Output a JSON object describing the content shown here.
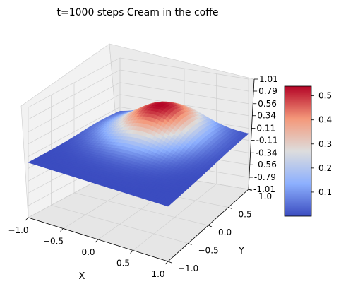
{
  "chart_data": {
    "type": "surface",
    "title": "t=1000 steps Cream in the coffe",
    "xlabel": "X",
    "ylabel": "Y",
    "zlabel": "",
    "xlim": [
      -1.0,
      1.0
    ],
    "ylim": [
      -1.0,
      1.0
    ],
    "zlim": [
      -1.01,
      1.01
    ],
    "x_ticks": [
      "−1.0",
      "−0.5",
      "0.0",
      "0.5",
      "1.0"
    ],
    "y_ticks": [
      "−1.0",
      "−0.5",
      "0.0",
      "0.5",
      "1.0"
    ],
    "z_ticks": [
      "1.01",
      "0.79",
      "0.56",
      "0.34",
      "0.11",
      "-0.11",
      "-0.34",
      "-0.56",
      "-0.79",
      "-1.01"
    ],
    "z_tick_values": [
      1.01,
      0.79,
      0.56,
      0.34,
      0.11,
      -0.11,
      -0.34,
      -0.56,
      -0.79,
      -1.01
    ],
    "surface": {
      "description_of_field": "gaussian-like blob",
      "peak_value": 0.54,
      "peak_center": [
        -0.1,
        0.6
      ],
      "base_value": 0.0
    },
    "colorbar": {
      "colormap": "coolwarm",
      "range": [
        0.0,
        0.54
      ],
      "ticks": [
        "0.1",
        "0.2",
        "0.3",
        "0.4",
        "0.5"
      ],
      "tick_values": [
        0.1,
        0.2,
        0.3,
        0.4,
        0.5
      ]
    },
    "grid": true,
    "legend": "none"
  }
}
